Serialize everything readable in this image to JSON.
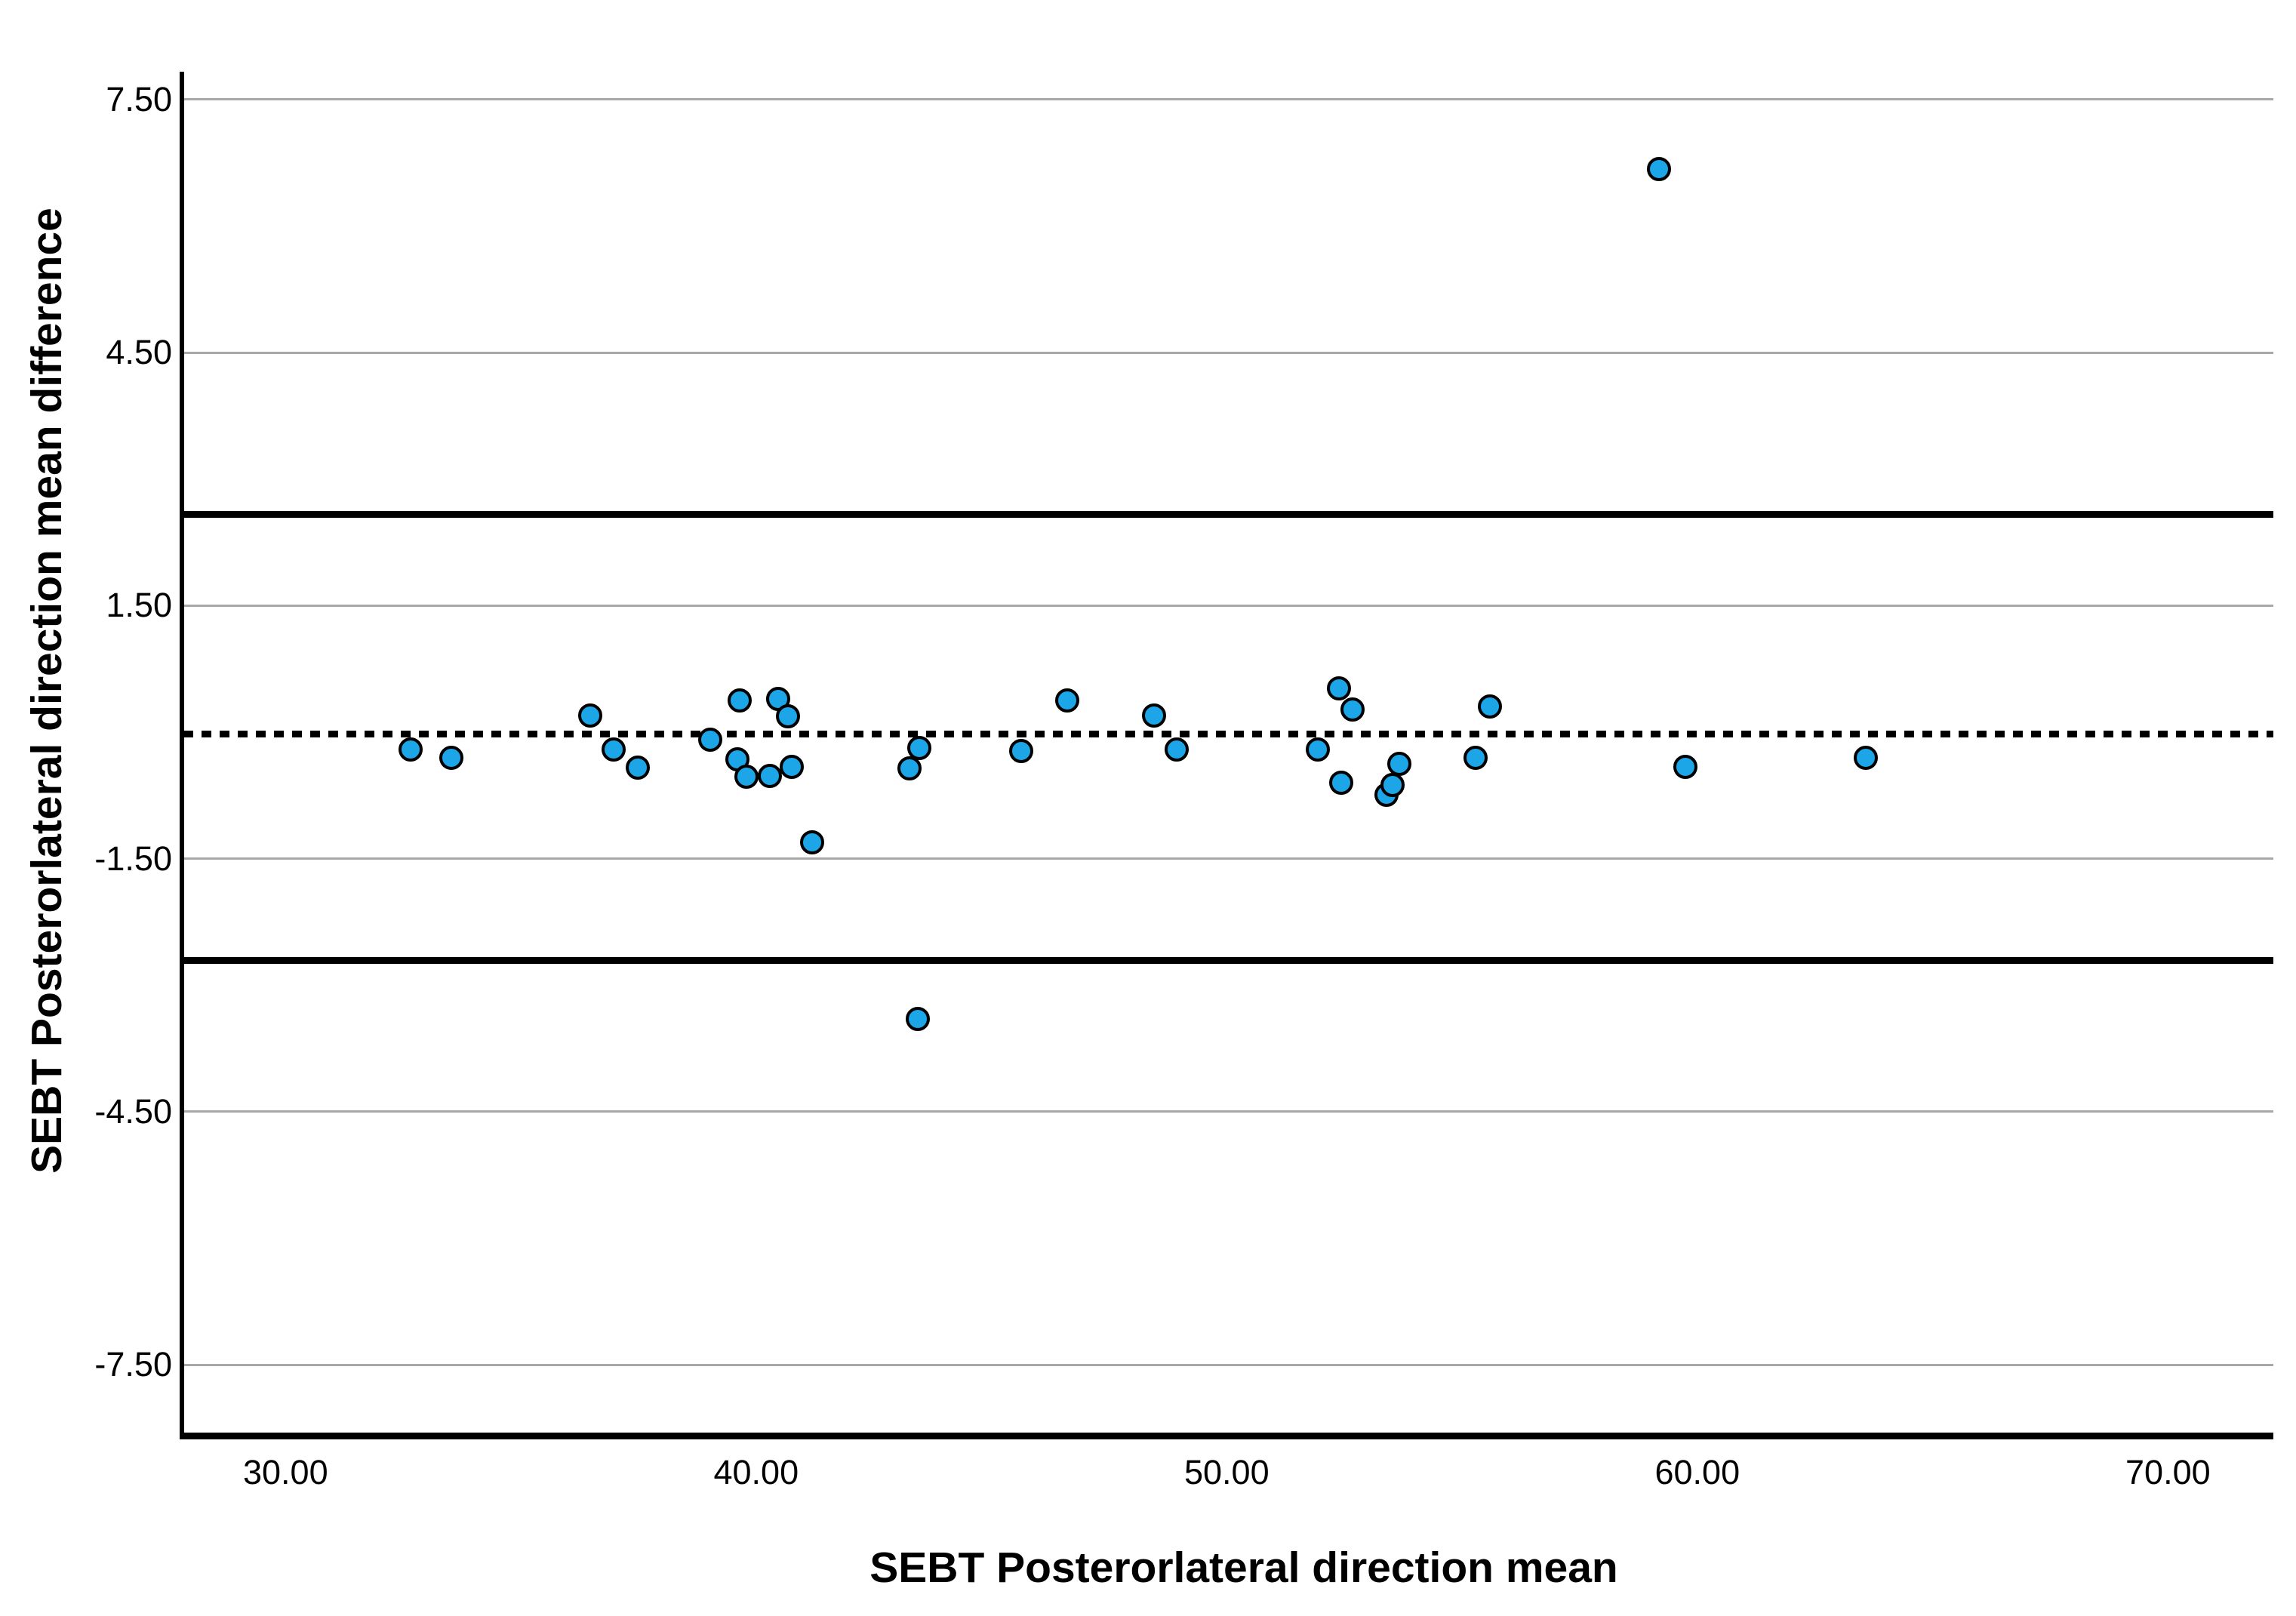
{
  "chart_data": {
    "type": "scatter",
    "subtype": "bland-altman",
    "title": "",
    "xlabel": "SEBT Posterorlateral direction mean",
    "ylabel": "SEBT Posterorlateral direction mean difference",
    "x_ticks": [
      {
        "value": 30,
        "label": "30.00"
      },
      {
        "value": 40,
        "label": "40.00"
      },
      {
        "value": 50,
        "label": "50.00"
      },
      {
        "value": 60,
        "label": "60.00"
      },
      {
        "value": 70,
        "label": "70.00"
      }
    ],
    "y_ticks": [
      {
        "value": 7.5,
        "label": "7.50"
      },
      {
        "value": 4.5,
        "label": "4.50"
      },
      {
        "value": 1.5,
        "label": "1.50"
      },
      {
        "value": -1.5,
        "label": "-1.50"
      },
      {
        "value": -4.5,
        "label": "-4.50"
      },
      {
        "value": -7.5,
        "label": "-7.50"
      }
    ],
    "xlim": [
      27.83,
      72.24
    ],
    "ylim": [
      -8.34,
      7.83
    ],
    "grid": "horizontal-only",
    "gridline_color": "#a8a8a8",
    "reference_lines": {
      "mean": {
        "value": -0.02,
        "style": "dotted",
        "color": "#000000"
      },
      "upper_loa": {
        "value": 2.58,
        "style": "solid",
        "color": "#000000"
      },
      "lower_loa": {
        "value": -2.71,
        "style": "solid",
        "color": "#000000"
      }
    },
    "point_color": "#1ca6e8",
    "point_outline_color": "#000000",
    "points": [
      [
        32.66,
        -0.21
      ],
      [
        33.52,
        -0.3
      ],
      [
        36.47,
        0.2
      ],
      [
        36.97,
        -0.21
      ],
      [
        37.48,
        -0.42
      ],
      [
        39.02,
        -0.09
      ],
      [
        39.61,
        -0.32
      ],
      [
        39.65,
        0.38
      ],
      [
        39.79,
        -0.53
      ],
      [
        40.29,
        -0.52
      ],
      [
        40.47,
        0.39
      ],
      [
        40.67,
        0.19
      ],
      [
        40.75,
        -0.41
      ],
      [
        41.19,
        -1.31
      ],
      [
        43.26,
        -0.43
      ],
      [
        43.43,
        -3.4
      ],
      [
        43.47,
        -0.19
      ],
      [
        45.63,
        -0.22
      ],
      [
        46.61,
        0.38
      ],
      [
        48.46,
        0.2
      ],
      [
        48.94,
        -0.21
      ],
      [
        51.94,
        -0.21
      ],
      [
        52.39,
        0.52
      ],
      [
        52.44,
        -0.6
      ],
      [
        52.68,
        0.27
      ],
      [
        53.39,
        -0.74
      ],
      [
        53.52,
        -0.63
      ],
      [
        53.66,
        -0.38
      ],
      [
        55.28,
        -0.3
      ],
      [
        55.59,
        0.3
      ],
      [
        59.18,
        6.68
      ],
      [
        59.74,
        -0.41
      ],
      [
        63.58,
        -0.3
      ]
    ]
  }
}
